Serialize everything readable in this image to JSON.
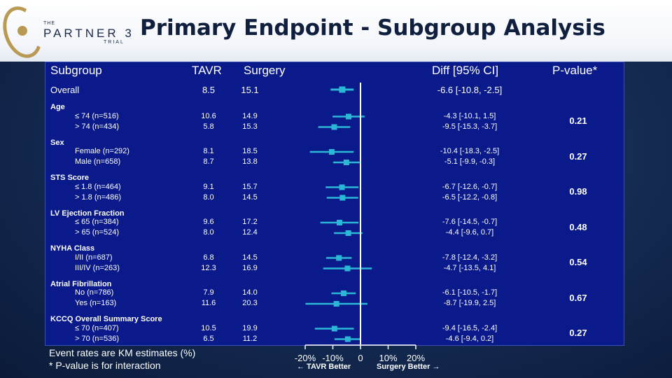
{
  "header": {
    "title": "Primary Endpoint - Subgroup Analysis",
    "logo": {
      "the": "THE",
      "name": "PARTNER 3",
      "trial": "TRIAL"
    }
  },
  "columns": {
    "subgroup": "Subgroup",
    "tavr": "TAVR",
    "surgery": "Surgery",
    "diff": "Diff [95% CI]",
    "pvalue": "P-value*"
  },
  "footnotes": {
    "line1": "Event rates are KM estimates (%)",
    "line2": "* P-value is for interaction"
  },
  "axis": {
    "tavr_better": "← TAVR Better",
    "surgery_better": "Surgery Better →"
  },
  "colors": {
    "panel": "#0a1a8a",
    "marker": "#2bb8d6",
    "title": "#0f1f3d"
  },
  "chart_data": {
    "type": "forest",
    "xlim": [
      -20,
      20
    ],
    "ticks": [
      {
        "value": -20,
        "label": "-20%"
      },
      {
        "value": -10,
        "label": "-10%"
      },
      {
        "value": 0,
        "label": "0"
      },
      {
        "value": 10,
        "label": "10%"
      },
      {
        "value": 20,
        "label": "20%"
      }
    ],
    "overall": {
      "label": "Overall",
      "tavr": "8.5",
      "surgery": "15.1",
      "diff": -6.6,
      "lo": -10.8,
      "hi": -2.5,
      "ci_text": "-6.6 [-10.8, -2.5]"
    },
    "groups": [
      {
        "name": "Age",
        "p": "0.21",
        "rows": [
          {
            "label": "≤ 74 (n=516)",
            "tavr": "10.6",
            "surgery": "14.9",
            "diff": -4.3,
            "lo": -10.1,
            "hi": 1.5,
            "ci_text": "-4.3 [-10.1, 1.5]"
          },
          {
            "label": "> 74 (n=434)",
            "tavr": "5.8",
            "surgery": "15.3",
            "diff": -9.5,
            "lo": -15.3,
            "hi": -3.7,
            "ci_text": "-9.5 [-15.3, -3.7]"
          }
        ]
      },
      {
        "name": "Sex",
        "p": "0.27",
        "rows": [
          {
            "label": "Female (n=292)",
            "tavr": "8.1",
            "surgery": "18.5",
            "diff": -10.4,
            "lo": -18.3,
            "hi": -2.5,
            "ci_text": "-10.4 [-18.3, -2.5]"
          },
          {
            "label": "Male (n=658)",
            "tavr": "8.7",
            "surgery": "13.8",
            "diff": -5.1,
            "lo": -9.9,
            "hi": -0.3,
            "ci_text": "-5.1 [-9.9, -0.3]"
          }
        ]
      },
      {
        "name": "STS Score",
        "p": "0.98",
        "rows": [
          {
            "label": "≤ 1.8 (n=464)",
            "tavr": "9.1",
            "surgery": "15.7",
            "diff": -6.7,
            "lo": -12.6,
            "hi": -0.7,
            "ci_text": "-6.7 [-12.6, -0.7]"
          },
          {
            "label": "> 1.8 (n=486)",
            "tavr": "8.0",
            "surgery": "14.5",
            "diff": -6.5,
            "lo": -12.2,
            "hi": -0.8,
            "ci_text": "-6.5 [-12.2, -0.8]"
          }
        ]
      },
      {
        "name": "LV Ejection Fraction",
        "p": "0.48",
        "rows": [
          {
            "label": "≤ 65 (n=384)",
            "tavr": "9.6",
            "surgery": "17.2",
            "diff": -7.6,
            "lo": -14.5,
            "hi": -0.7,
            "ci_text": "-7.6 [-14.5, -0.7]"
          },
          {
            "label": "> 65 (n=524)",
            "tavr": "8.0",
            "surgery": "12.4",
            "diff": -4.4,
            "lo": -9.6,
            "hi": 0.7,
            "ci_text": "-4.4 [-9.6, 0.7]"
          }
        ]
      },
      {
        "name": "NYHA Class",
        "p": "0.54",
        "rows": [
          {
            "label": "I/II (n=687)",
            "tavr": "6.8",
            "surgery": "14.5",
            "diff": -7.8,
            "lo": -12.4,
            "hi": -3.2,
            "ci_text": "-7.8 [-12.4, -3.2]"
          },
          {
            "label": "III/IV (n=263)",
            "tavr": "12.3",
            "surgery": "16.9",
            "diff": -4.7,
            "lo": -13.5,
            "hi": 4.1,
            "ci_text": "-4.7 [-13.5, 4.1]"
          }
        ]
      },
      {
        "name": "Atrial Fibrillation",
        "p": "0.67",
        "rows": [
          {
            "label": "No (n=786)",
            "tavr": "7.9",
            "surgery": "14.0",
            "diff": -6.1,
            "lo": -10.5,
            "hi": -1.7,
            "ci_text": "-6.1 [-10.5, -1.7]"
          },
          {
            "label": "Yes (n=163)",
            "tavr": "11.6",
            "surgery": "20.3",
            "diff": -8.7,
            "lo": -19.9,
            "hi": 2.5,
            "ci_text": "-8.7 [-19.9, 2.5]"
          }
        ]
      },
      {
        "name": "KCCQ Overall Summary Score",
        "p": "0.27",
        "rows": [
          {
            "label": "≤ 70 (n=407)",
            "tavr": "10.5",
            "surgery": "19.9",
            "diff": -9.4,
            "lo": -16.5,
            "hi": -2.4,
            "ci_text": "-9.4 [-16.5, -2.4]"
          },
          {
            "label": "> 70 (n=536)",
            "tavr": "6.5",
            "surgery": "11.2",
            "diff": -4.6,
            "lo": -9.4,
            "hi": 0.2,
            "ci_text": "-4.6 [-9.4, 0.2]"
          }
        ]
      }
    ]
  }
}
